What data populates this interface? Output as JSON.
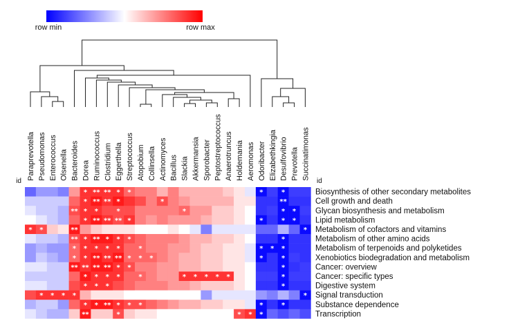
{
  "chart_data": {
    "type": "heatmap",
    "title": "",
    "colorbar": {
      "min_label": "row min",
      "max_label": "row max",
      "low_color": "#0000ff",
      "mid_color": "#ffffff",
      "high_color": "#ff0000"
    },
    "row_axis_title": "id",
    "col_axis_title": "id",
    "columns": [
      "Paraprevotella",
      "Pseudomonas",
      "Enterococcus",
      "Olsenella",
      "Bacteroides",
      "Dorea",
      "Ruminococcus",
      "Clostridium",
      "Eggerthella",
      "Streptococcus",
      "Atopobium",
      "Collinsella",
      "Actinomyces",
      "Bacillus",
      "Slackia",
      "Akkermansia",
      "Sporobacter",
      "Peptostreptococcus",
      "Anaerotruncus",
      "Holdemania",
      "Aeromonas",
      "Odoribacter",
      "Elizabethkingia",
      "Desulfovibrio",
      "Prevotella",
      "Succinatimonas"
    ],
    "rows": [
      "Biosynthesis of other secondary metabolites",
      "Cell growth and death",
      "Glycan biosynthesis and metabolism",
      "Lipid metabolism",
      "Metabolism of cofactors and vitamins",
      "Metabolism of other amino acids",
      "Metabolism of terpenoids and polyketides",
      "Xenobiotics biodegradation and metabolism",
      "Cancer: overview",
      "Cancer: specific types",
      "Digestive system",
      "Signal transduction",
      "Substance dependence",
      "Transcription"
    ],
    "values": [
      [
        0.2,
        0.3,
        0.3,
        0.25,
        0.7,
        0.9,
        0.9,
        0.9,
        0.9,
        0.8,
        0.75,
        0.75,
        0.65,
        0.75,
        0.65,
        0.65,
        0.65,
        0.65,
        0.6,
        0.55,
        0.45,
        0.02,
        0.12,
        0.02,
        0.12,
        0.12
      ],
      [
        0.4,
        0.4,
        0.4,
        0.4,
        0.8,
        0.9,
        0.95,
        0.9,
        0.95,
        0.9,
        0.85,
        0.75,
        0.85,
        0.75,
        0.7,
        0.65,
        0.65,
        0.65,
        0.65,
        0.55,
        0.55,
        0.1,
        0.1,
        0.02,
        0.1,
        0.1
      ],
      [
        0.45,
        0.4,
        0.4,
        0.35,
        0.85,
        0.9,
        0.9,
        0.85,
        0.85,
        0.85,
        0.75,
        0.75,
        0.75,
        0.75,
        0.8,
        0.7,
        0.7,
        0.6,
        0.6,
        0.55,
        0.5,
        0.1,
        0.12,
        0.02,
        0.02,
        0.12
      ],
      [
        0.5,
        0.45,
        0.4,
        0.35,
        0.8,
        0.9,
        0.95,
        0.9,
        0.85,
        0.9,
        0.75,
        0.7,
        0.75,
        0.7,
        0.7,
        0.7,
        0.65,
        0.6,
        0.6,
        0.55,
        0.5,
        0.02,
        0.1,
        0.02,
        0.02,
        0.1
      ],
      [
        0.9,
        0.85,
        0.6,
        0.55,
        0.95,
        0.7,
        0.6,
        0.55,
        0.55,
        0.55,
        0.5,
        0.5,
        0.5,
        0.55,
        0.5,
        0.45,
        0.25,
        0.45,
        0.45,
        0.45,
        0.45,
        0.2,
        0.2,
        0.35,
        0.2,
        0.02
      ],
      [
        0.45,
        0.4,
        0.4,
        0.35,
        0.85,
        0.9,
        0.95,
        0.95,
        0.9,
        0.85,
        0.8,
        0.75,
        0.75,
        0.75,
        0.7,
        0.65,
        0.65,
        0.6,
        0.6,
        0.55,
        0.5,
        0.1,
        0.1,
        0.02,
        0.1,
        0.1
      ],
      [
        0.3,
        0.35,
        0.3,
        0.3,
        0.8,
        0.9,
        0.9,
        0.9,
        0.9,
        0.8,
        0.8,
        0.75,
        0.75,
        0.7,
        0.7,
        0.65,
        0.6,
        0.6,
        0.55,
        0.55,
        0.45,
        0.02,
        0.02,
        0.02,
        0.1,
        0.1
      ],
      [
        0.3,
        0.4,
        0.35,
        0.3,
        0.8,
        0.9,
        0.95,
        0.9,
        0.95,
        0.8,
        0.8,
        0.8,
        0.75,
        0.7,
        0.65,
        0.65,
        0.6,
        0.6,
        0.55,
        0.55,
        0.45,
        0.02,
        0.1,
        0.02,
        0.12,
        0.1
      ],
      [
        0.45,
        0.45,
        0.4,
        0.4,
        0.95,
        0.9,
        0.95,
        0.95,
        0.9,
        0.85,
        0.75,
        0.75,
        0.7,
        0.7,
        0.65,
        0.65,
        0.6,
        0.6,
        0.55,
        0.55,
        0.5,
        0.1,
        0.1,
        0.02,
        0.1,
        0.12
      ],
      [
        0.4,
        0.4,
        0.4,
        0.4,
        0.8,
        0.95,
        0.9,
        0.9,
        0.9,
        0.8,
        0.8,
        0.75,
        0.7,
        0.7,
        0.9,
        0.9,
        0.9,
        0.9,
        0.9,
        0.55,
        0.5,
        0.12,
        0.12,
        0.02,
        0.12,
        0.12
      ],
      [
        0.45,
        0.45,
        0.4,
        0.4,
        0.85,
        0.9,
        0.9,
        0.9,
        0.85,
        0.8,
        0.75,
        0.75,
        0.75,
        0.7,
        0.7,
        0.65,
        0.6,
        0.6,
        0.6,
        0.55,
        0.5,
        0.1,
        0.1,
        0.02,
        0.1,
        0.1
      ],
      [
        0.85,
        0.9,
        0.9,
        0.9,
        0.9,
        0.65,
        0.55,
        0.55,
        0.55,
        0.5,
        0.5,
        0.5,
        0.5,
        0.5,
        0.5,
        0.5,
        0.3,
        0.45,
        0.45,
        0.45,
        0.45,
        0.3,
        0.25,
        0.35,
        0.25,
        0.02
      ],
      [
        0.35,
        0.4,
        0.4,
        0.3,
        0.8,
        0.9,
        0.95,
        0.95,
        0.9,
        0.85,
        0.85,
        0.8,
        0.75,
        0.7,
        0.65,
        0.65,
        0.6,
        0.6,
        0.55,
        0.55,
        0.45,
        0.02,
        0.1,
        0.02,
        0.1,
        0.1
      ],
      [
        0.45,
        0.4,
        0.35,
        0.35,
        0.6,
        0.95,
        0.6,
        0.6,
        0.85,
        0.6,
        0.55,
        0.55,
        0.5,
        0.5,
        0.5,
        0.5,
        0.5,
        0.5,
        0.5,
        0.85,
        0.9,
        0.02,
        0.2,
        0.15,
        0.2,
        0.15
      ]
    ],
    "significance_marks": [
      [
        0,
        5,
        "*"
      ],
      [
        0,
        6,
        "**"
      ],
      [
        0,
        7,
        "**"
      ],
      [
        0,
        8,
        "*"
      ],
      [
        0,
        9,
        "*"
      ],
      [
        0,
        21,
        "*"
      ],
      [
        0,
        23,
        "*"
      ],
      [
        1,
        5,
        "*"
      ],
      [
        1,
        6,
        "**"
      ],
      [
        1,
        7,
        "**"
      ],
      [
        1,
        8,
        "*"
      ],
      [
        1,
        12,
        "*"
      ],
      [
        1,
        23,
        "**"
      ],
      [
        2,
        4,
        "**"
      ],
      [
        2,
        5,
        "*"
      ],
      [
        2,
        6,
        "*"
      ],
      [
        2,
        8,
        "*"
      ],
      [
        2,
        14,
        "*"
      ],
      [
        2,
        23,
        "*"
      ],
      [
        2,
        24,
        "*"
      ],
      [
        3,
        5,
        "*"
      ],
      [
        3,
        6,
        "**"
      ],
      [
        3,
        7,
        "**"
      ],
      [
        3,
        8,
        "**"
      ],
      [
        3,
        9,
        "*"
      ],
      [
        3,
        21,
        "*"
      ],
      [
        3,
        23,
        "*"
      ],
      [
        3,
        24,
        "*"
      ],
      [
        4,
        0,
        "*"
      ],
      [
        4,
        1,
        "*"
      ],
      [
        4,
        4,
        "**"
      ],
      [
        4,
        25,
        "*"
      ],
      [
        5,
        4,
        "**"
      ],
      [
        5,
        5,
        "*"
      ],
      [
        5,
        6,
        "**"
      ],
      [
        5,
        7,
        "*"
      ],
      [
        5,
        8,
        "*"
      ],
      [
        5,
        9,
        "*"
      ],
      [
        5,
        23,
        "*"
      ],
      [
        6,
        4,
        "*"
      ],
      [
        6,
        5,
        "*"
      ],
      [
        6,
        6,
        "*"
      ],
      [
        6,
        7,
        "*"
      ],
      [
        6,
        8,
        "*"
      ],
      [
        6,
        10,
        "*"
      ],
      [
        6,
        21,
        "*"
      ],
      [
        6,
        22,
        "*"
      ],
      [
        6,
        23,
        "*"
      ],
      [
        7,
        4,
        "*"
      ],
      [
        7,
        5,
        "*"
      ],
      [
        7,
        6,
        "**"
      ],
      [
        7,
        7,
        "**"
      ],
      [
        7,
        8,
        "**"
      ],
      [
        7,
        9,
        "*"
      ],
      [
        7,
        10,
        "*"
      ],
      [
        7,
        11,
        "*"
      ],
      [
        7,
        21,
        "*"
      ],
      [
        7,
        23,
        "*"
      ],
      [
        8,
        4,
        "**"
      ],
      [
        8,
        5,
        "**"
      ],
      [
        8,
        6,
        "**"
      ],
      [
        8,
        7,
        "**"
      ],
      [
        8,
        8,
        "*"
      ],
      [
        8,
        9,
        "*"
      ],
      [
        8,
        23,
        "*"
      ],
      [
        9,
        5,
        "*"
      ],
      [
        9,
        6,
        "*"
      ],
      [
        9,
        7,
        "*"
      ],
      [
        9,
        8,
        "*"
      ],
      [
        9,
        10,
        "*"
      ],
      [
        9,
        14,
        "*"
      ],
      [
        9,
        15,
        "*"
      ],
      [
        9,
        16,
        "*"
      ],
      [
        9,
        17,
        "*"
      ],
      [
        9,
        18,
        "*"
      ],
      [
        9,
        23,
        "*"
      ],
      [
        10,
        5,
        "*"
      ],
      [
        10,
        6,
        "*"
      ],
      [
        10,
        7,
        "*"
      ],
      [
        10,
        23,
        "*"
      ],
      [
        11,
        1,
        "*"
      ],
      [
        11,
        2,
        "*"
      ],
      [
        11,
        3,
        "*"
      ],
      [
        11,
        4,
        "*"
      ],
      [
        11,
        25,
        "*"
      ],
      [
        12,
        5,
        "*"
      ],
      [
        12,
        6,
        "*"
      ],
      [
        12,
        7,
        "**"
      ],
      [
        12,
        8,
        "*"
      ],
      [
        12,
        9,
        "*"
      ],
      [
        12,
        10,
        "*"
      ],
      [
        12,
        21,
        "*"
      ],
      [
        12,
        23,
        "*"
      ],
      [
        13,
        5,
        "**"
      ],
      [
        13,
        8,
        "*"
      ],
      [
        13,
        19,
        "*"
      ],
      [
        13,
        20,
        "*"
      ],
      [
        13,
        21,
        "*"
      ]
    ],
    "column_dendrogram": true
  }
}
